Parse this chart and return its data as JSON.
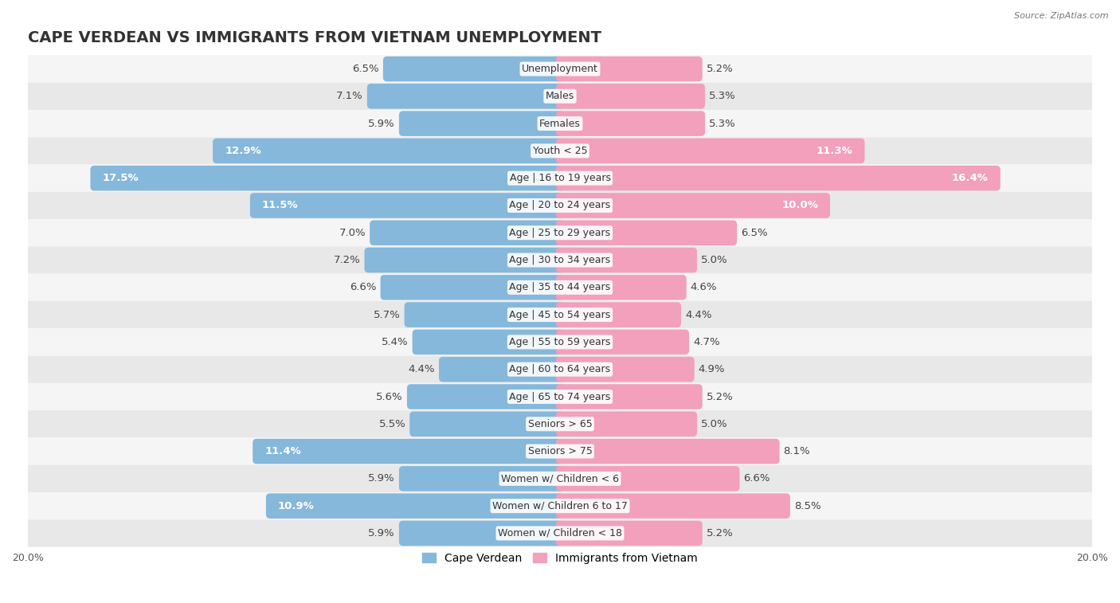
{
  "title": "CAPE VERDEAN VS IMMIGRANTS FROM VIETNAM UNEMPLOYMENT",
  "source": "Source: ZipAtlas.com",
  "categories": [
    "Unemployment",
    "Males",
    "Females",
    "Youth < 25",
    "Age | 16 to 19 years",
    "Age | 20 to 24 years",
    "Age | 25 to 29 years",
    "Age | 30 to 34 years",
    "Age | 35 to 44 years",
    "Age | 45 to 54 years",
    "Age | 55 to 59 years",
    "Age | 60 to 64 years",
    "Age | 65 to 74 years",
    "Seniors > 65",
    "Seniors > 75",
    "Women w/ Children < 6",
    "Women w/ Children 6 to 17",
    "Women w/ Children < 18"
  ],
  "cape_verdean": [
    6.5,
    7.1,
    5.9,
    12.9,
    17.5,
    11.5,
    7.0,
    7.2,
    6.6,
    5.7,
    5.4,
    4.4,
    5.6,
    5.5,
    11.4,
    5.9,
    10.9,
    5.9
  ],
  "vietnam": [
    5.2,
    5.3,
    5.3,
    11.3,
    16.4,
    10.0,
    6.5,
    5.0,
    4.6,
    4.4,
    4.7,
    4.9,
    5.2,
    5.0,
    8.1,
    6.6,
    8.5,
    5.2
  ],
  "cv_color": "#85b8db",
  "vn_color": "#f2a0bb",
  "cv_color_dark": "#6aa3cc",
  "vn_color_dark": "#e8809f",
  "row_color_light": "#f5f5f5",
  "row_color_dark": "#e8e8e8",
  "xlim": 20.0,
  "bar_height": 0.62,
  "title_fontsize": 14,
  "label_fontsize": 9.5,
  "cat_fontsize": 9,
  "tick_fontsize": 9,
  "legend_fontsize": 10
}
